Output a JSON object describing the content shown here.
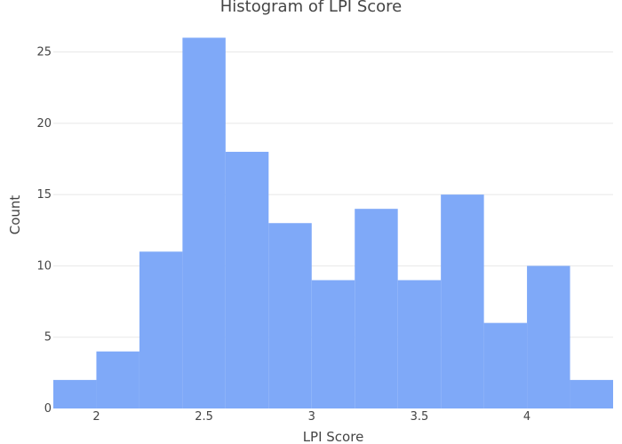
{
  "chart_data": {
    "type": "bar",
    "subtype": "histogram",
    "title": "Histogram of LPI Score",
    "xlabel": "LPI Score",
    "ylabel": "Count",
    "bins": [
      {
        "start": 1.8,
        "end": 2.0,
        "count": 2
      },
      {
        "start": 2.0,
        "end": 2.2,
        "count": 4
      },
      {
        "start": 2.2,
        "end": 2.4,
        "count": 11
      },
      {
        "start": 2.4,
        "end": 2.6,
        "count": 26
      },
      {
        "start": 2.6,
        "end": 2.8,
        "count": 18
      },
      {
        "start": 2.8,
        "end": 3.0,
        "count": 13
      },
      {
        "start": 3.0,
        "end": 3.2,
        "count": 9
      },
      {
        "start": 3.2,
        "end": 3.4,
        "count": 14
      },
      {
        "start": 3.4,
        "end": 3.6,
        "count": 9
      },
      {
        "start": 3.6,
        "end": 3.8,
        "count": 15
      },
      {
        "start": 3.8,
        "end": 4.0,
        "count": 6
      },
      {
        "start": 4.0,
        "end": 4.2,
        "count": 10
      },
      {
        "start": 4.2,
        "end": 4.4,
        "count": 2
      }
    ],
    "xlim": [
      1.8,
      4.4
    ],
    "ylim": [
      0,
      27.4
    ],
    "xticks": [
      {
        "value": 2,
        "label": "2"
      },
      {
        "value": 2.5,
        "label": "2.5"
      },
      {
        "value": 3,
        "label": "3"
      },
      {
        "value": 3.5,
        "label": "3.5"
      },
      {
        "value": 4,
        "label": "4"
      }
    ],
    "yticks": [
      {
        "value": 0,
        "label": "0"
      },
      {
        "value": 5,
        "label": "5"
      },
      {
        "value": 10,
        "label": "10"
      },
      {
        "value": 15,
        "label": "15"
      },
      {
        "value": 20,
        "label": "20"
      },
      {
        "value": 25,
        "label": "25"
      }
    ],
    "grid": true,
    "bar_color": "#7fa9f8"
  }
}
